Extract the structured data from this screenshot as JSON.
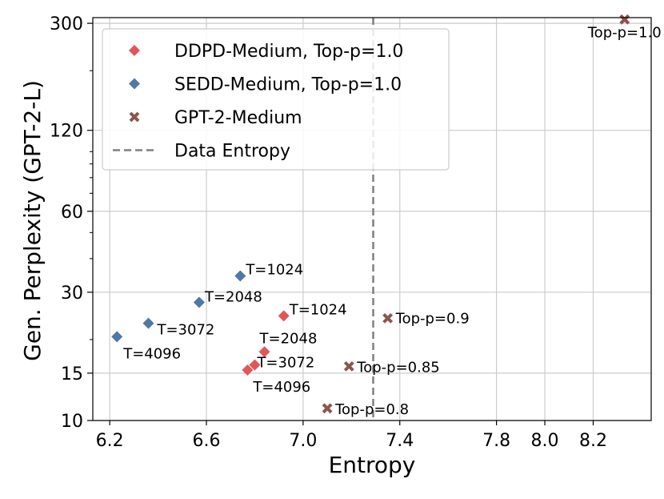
{
  "chart_data": {
    "type": "scatter",
    "xlabel": "Entropy",
    "ylabel": "Gen. Perplexity (GPT-2-L)",
    "xlim": [
      6.13,
      8.44
    ],
    "ylim": [
      10,
      315
    ],
    "yscale": "log",
    "xticks": [
      {
        "value": 6.2,
        "label": "6.2"
      },
      {
        "value": 6.6,
        "label": "6.6"
      },
      {
        "value": 7.0,
        "label": "7.0"
      },
      {
        "value": 7.4,
        "label": "7.4"
      },
      {
        "value": 7.8,
        "label": "7.8"
      },
      {
        "value": 8.0,
        "label": "8.0"
      },
      {
        "value": 8.2,
        "label": "8.2"
      }
    ],
    "yticks": [
      {
        "value": 10,
        "label": "10"
      },
      {
        "value": 15,
        "label": "15"
      },
      {
        "value": 30,
        "label": "30"
      },
      {
        "value": 60,
        "label": "60"
      },
      {
        "value": 120,
        "label": "120"
      },
      {
        "value": 300,
        "label": "300"
      }
    ],
    "grid": true,
    "legend_position": "top-left",
    "reference_lines": [
      {
        "orientation": "vertical",
        "x": 7.29,
        "name": "Data Entropy",
        "style": "dashed",
        "color": "#7f7f7f"
      }
    ],
    "series": [
      {
        "name": "DDPD-Medium, Top-p=1.0",
        "marker": "diamond",
        "color": "#e15759",
        "points": [
          {
            "x": 6.92,
            "y": 24.5,
            "label": "T=1024"
          },
          {
            "x": 6.84,
            "y": 18.0,
            "label": "T=2048"
          },
          {
            "x": 6.8,
            "y": 16.1,
            "label": "T=3072"
          },
          {
            "x": 6.77,
            "y": 15.4,
            "label": "T=4096"
          }
        ]
      },
      {
        "name": "SEDD-Medium, Top-p=1.0",
        "marker": "diamond",
        "color": "#4e79a7",
        "points": [
          {
            "x": 6.74,
            "y": 34.5,
            "label": "T=1024"
          },
          {
            "x": 6.57,
            "y": 27.5,
            "label": "T=2048"
          },
          {
            "x": 6.36,
            "y": 23.0,
            "label": "T=3072"
          },
          {
            "x": 6.23,
            "y": 20.5,
            "label": "T=4096"
          }
        ]
      },
      {
        "name": "GPT-2-Medium",
        "marker": "x",
        "color": "#8c564b",
        "points": [
          {
            "x": 8.33,
            "y": 310,
            "label": "Top-p=1.0"
          },
          {
            "x": 7.35,
            "y": 24.0,
            "label": "Top-p=0.9"
          },
          {
            "x": 7.19,
            "y": 15.9,
            "label": "Top-p=0.85"
          },
          {
            "x": 7.1,
            "y": 11.1,
            "label": "Top-p=0.8"
          }
        ]
      }
    ]
  }
}
